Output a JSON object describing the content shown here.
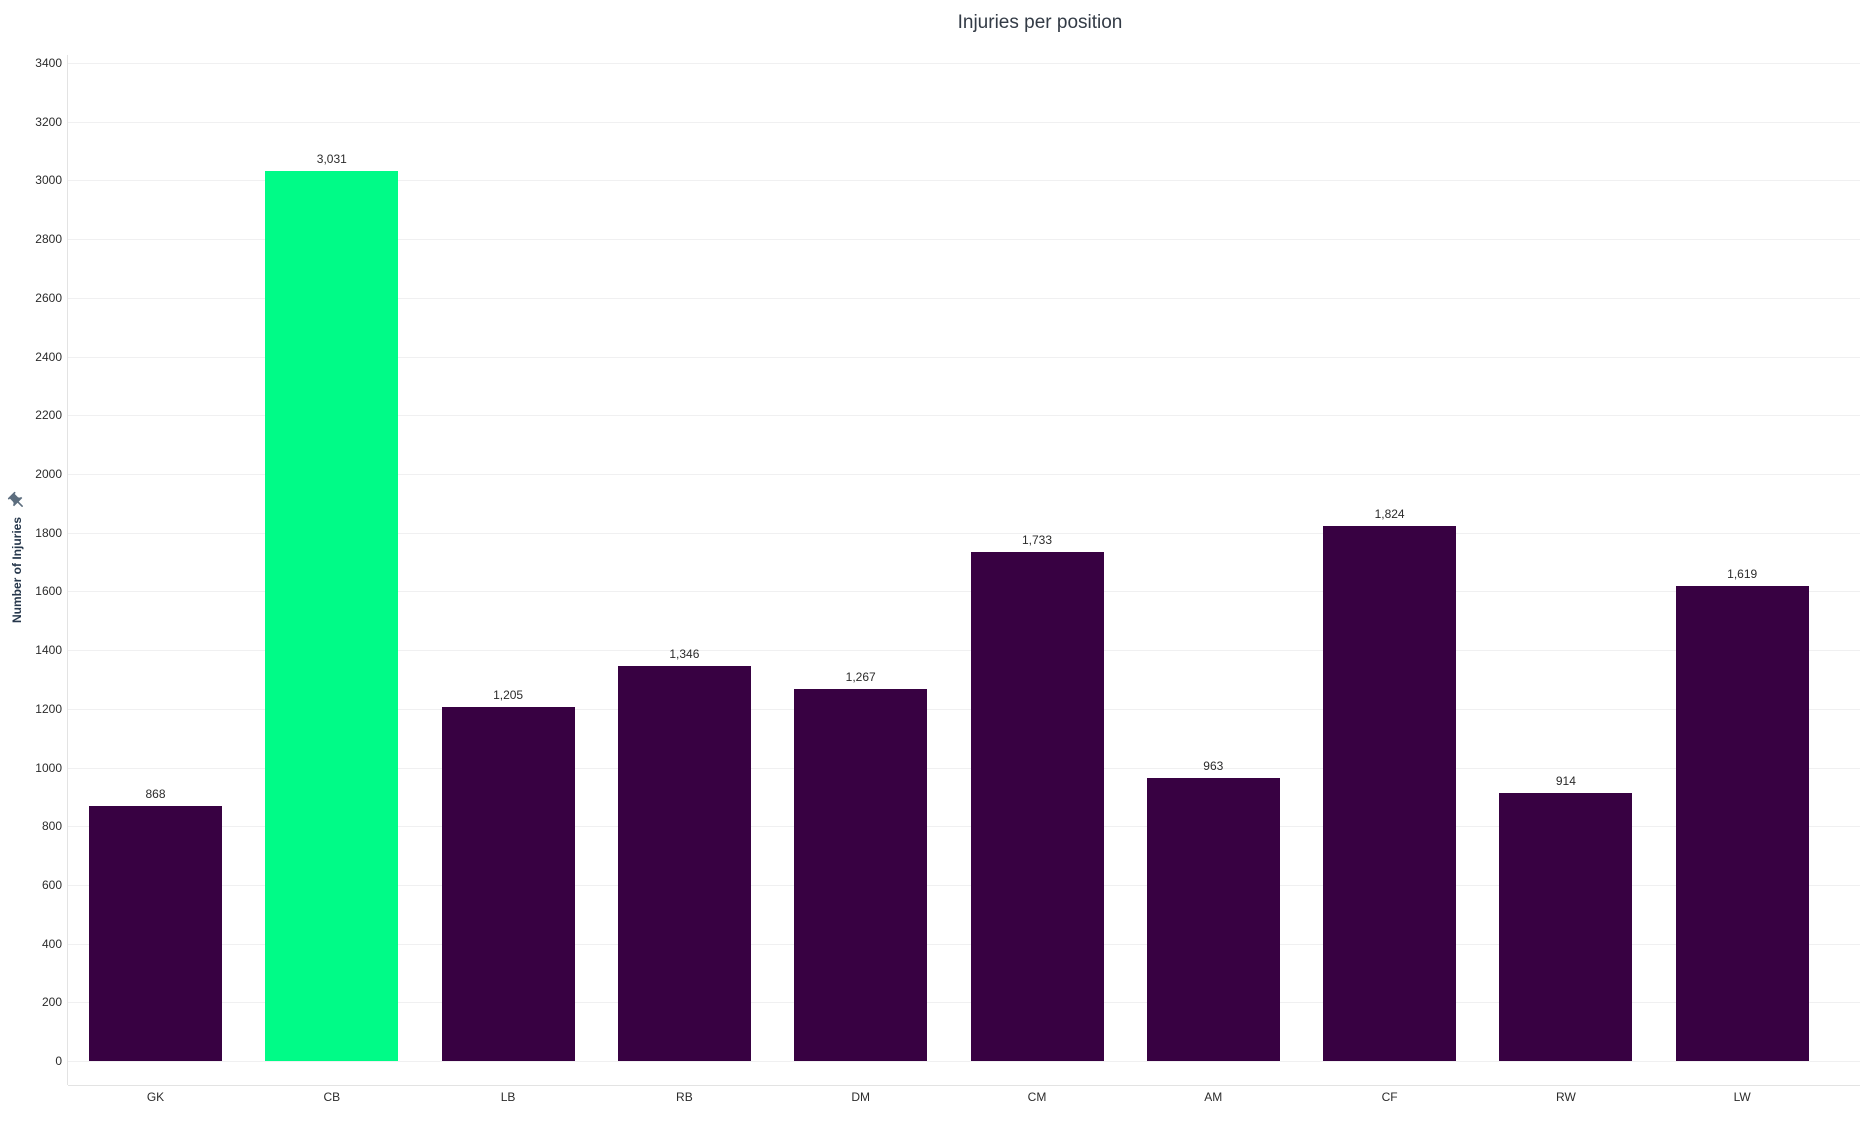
{
  "chart_data": {
    "type": "bar",
    "title": "Injuries per position",
    "categories": [
      "GK",
      "CB",
      "LB",
      "RB",
      "DM",
      "CM",
      "AM",
      "CF",
      "RW",
      "LW"
    ],
    "values": [
      868,
      3031,
      1205,
      1346,
      1267,
      1733,
      963,
      1824,
      914,
      1619
    ],
    "value_labels": [
      "868",
      "3,031",
      "1,205",
      "1,346",
      "1,267",
      "1,733",
      "963",
      "1,824",
      "914",
      "1,619"
    ],
    "xlabel": "",
    "ylabel": "Number of Injuries",
    "ylim": [
      0,
      3400
    ],
    "ytick_step": 200,
    "grid": true,
    "legend": "none",
    "highlighted_category": "CB",
    "colors": {
      "background": "#ffffff",
      "bar_default": "#380142",
      "bar_highlight": "#00FB87",
      "gridline": "#f0f0f1",
      "axis_line": "#e3e3e3",
      "title_text": "#333B46",
      "tick_text": "#2b2b2b",
      "axis_title_text": "#26374B",
      "pin_icon": "#5C6D7E"
    }
  },
  "icons": {
    "axis_pin": "pushpin-icon"
  }
}
